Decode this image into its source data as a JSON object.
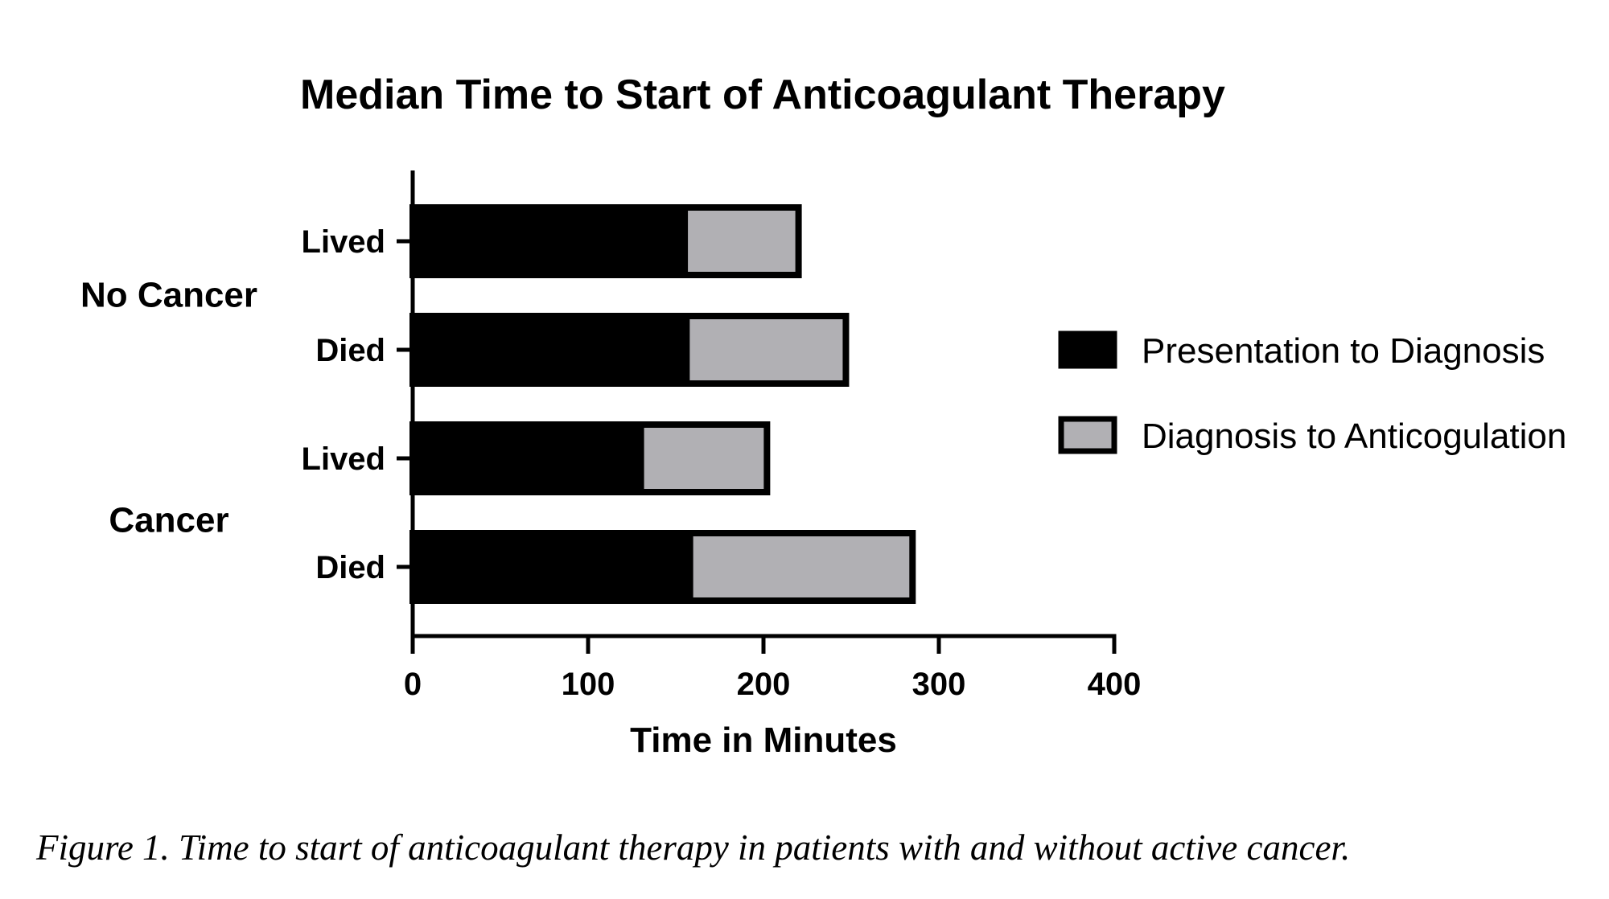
{
  "chart_data": {
    "type": "bar",
    "orientation": "horizontal",
    "stacked": true,
    "title": "Median Time to Start of Anticoagulant Therapy",
    "xlabel": "Time in Minutes",
    "xlim": [
      0,
      400
    ],
    "xticks": [
      "0",
      "100",
      "200",
      "300",
      "400"
    ],
    "groups": [
      {
        "label": "No Cancer",
        "categories": [
          "Lived",
          "Died"
        ]
      },
      {
        "label": "Cancer",
        "categories": [
          "Lived",
          "Died"
        ]
      }
    ],
    "categories": [
      "Lived",
      "Died",
      "Lived",
      "Died"
    ],
    "series": [
      {
        "name": "Presentation to Diagnosis",
        "color": "#000000",
        "values": [
          157,
          158,
          132,
          160
        ]
      },
      {
        "name": "Diagnosis to Anticogulation",
        "color": "#b1b0b4",
        "values": [
          63,
          89,
          70,
          125
        ]
      }
    ],
    "legend": "right",
    "grid": false
  },
  "caption": "Figure 1. Time to start of anticoagulant therapy in patients with and without active cancer."
}
